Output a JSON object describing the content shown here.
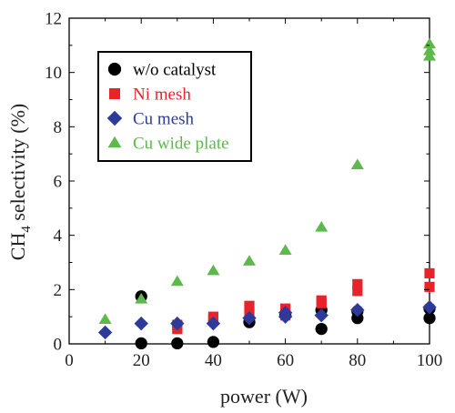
{
  "chart_data": {
    "type": "scatter",
    "xlabel": "power (W)",
    "ylabel_main": "CH",
    "ylabel_sub": "4",
    "ylabel_rest": " selectivity (%)",
    "xlim": [
      0,
      100
    ],
    "ylim": [
      0,
      12
    ],
    "xticks": [
      0,
      20,
      40,
      60,
      80,
      100
    ],
    "yticks": [
      0,
      2,
      4,
      6,
      8,
      10,
      12
    ],
    "grid": false,
    "legend_position": "top-left",
    "series": [
      {
        "name": "w/o catalyst",
        "marker": "circle",
        "color": "#000000",
        "points": [
          [
            20,
            0.02
          ],
          [
            20,
            1.75
          ],
          [
            30,
            0.02
          ],
          [
            40,
            0.07
          ],
          [
            50,
            0.8
          ],
          [
            60,
            1.05
          ],
          [
            70,
            0.55
          ],
          [
            70,
            1.25
          ],
          [
            80,
            0.95
          ],
          [
            80,
            1.2
          ],
          [
            100,
            0.95
          ],
          [
            100,
            1.3
          ]
        ]
      },
      {
        "name": "Ni mesh",
        "marker": "square",
        "color": "#e8232a",
        "points": [
          [
            30,
            0.55
          ],
          [
            30,
            0.7
          ],
          [
            40,
            0.9
          ],
          [
            40,
            1.0
          ],
          [
            50,
            1.05
          ],
          [
            50,
            1.4
          ],
          [
            60,
            1.05
          ],
          [
            60,
            1.3
          ],
          [
            70,
            1.5
          ],
          [
            70,
            1.6
          ],
          [
            80,
            1.95
          ],
          [
            80,
            2.2
          ],
          [
            100,
            2.1
          ],
          [
            100,
            2.6
          ]
        ]
      },
      {
        "name": "Cu mesh",
        "marker": "diamond",
        "color": "#2e3a9a",
        "points": [
          [
            10,
            0.42
          ],
          [
            20,
            0.75
          ],
          [
            30,
            0.75
          ],
          [
            40,
            0.75
          ],
          [
            50,
            0.95
          ],
          [
            60,
            1.0
          ],
          [
            60,
            1.15
          ],
          [
            70,
            1.05
          ],
          [
            80,
            1.25
          ],
          [
            100,
            1.35
          ]
        ]
      },
      {
        "name": "Cu wide plate",
        "marker": "triangle",
        "color": "#5db94b",
        "points": [
          [
            10,
            0.9
          ],
          [
            20,
            1.65
          ],
          [
            30,
            2.3
          ],
          [
            40,
            2.7
          ],
          [
            50,
            3.05
          ],
          [
            60,
            3.45
          ],
          [
            70,
            4.3
          ],
          [
            80,
            6.6
          ],
          [
            100,
            10.6
          ],
          [
            100,
            10.8
          ],
          [
            100,
            11.05
          ]
        ]
      }
    ]
  }
}
